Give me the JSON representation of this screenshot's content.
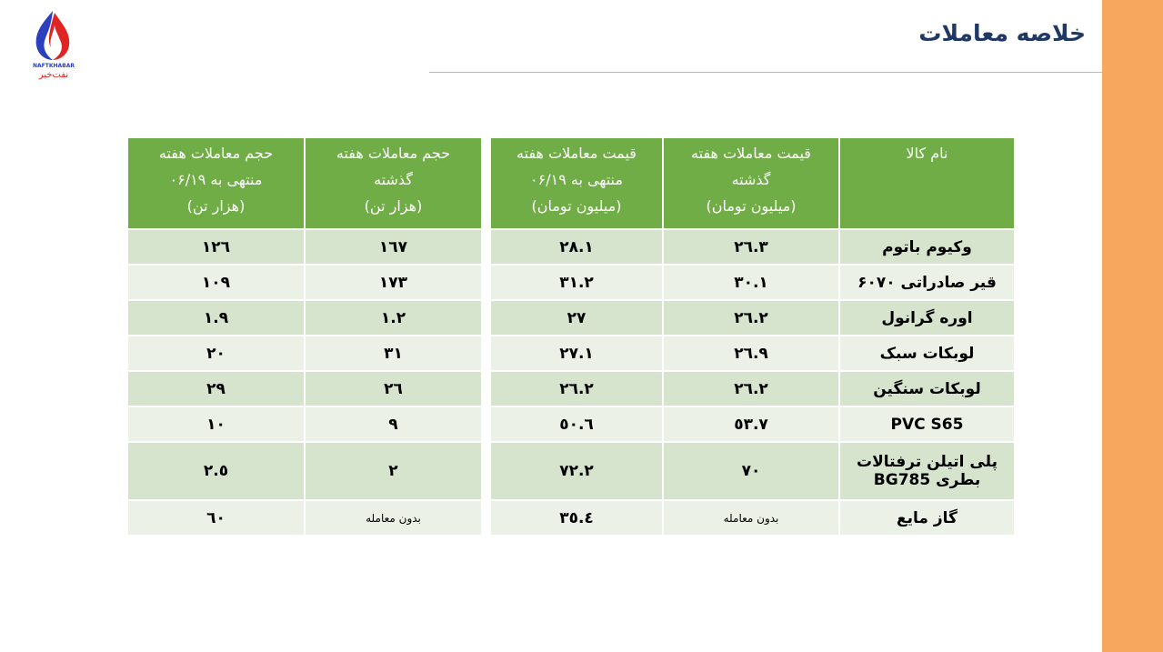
{
  "header": {
    "title": "خلاصه معاملات"
  },
  "logo": {
    "text_latin": "NAFTKHABAR",
    "text_fa": "نفت خبر"
  },
  "colors": {
    "header_green": "#70AD47",
    "row_odd": "#D6E3CD",
    "row_even": "#EBF1E7",
    "side_orange": "#F8A85E",
    "title_blue": "#1F3864"
  },
  "table": {
    "columns": [
      [
        "نام کالا"
      ],
      [
        "قیمت معاملات هفته",
        "گذشته",
        "(میلیون تومان)"
      ],
      [
        "قیمت معاملات هفته",
        "منتهی به ۰۶/۱۹",
        "(میلیون تومان)"
      ],
      [
        "حجم معاملات هفته",
        "گذشته",
        "(هزار تن)"
      ],
      [
        "حجم معاملات هفته",
        "منتهی به ۰۶/۱۹",
        "(هزار تن)"
      ]
    ],
    "rows": [
      {
        "name": "وکیوم باتوم",
        "price_prev": "٢٦.٣",
        "price_curr": "٢٨.١",
        "vol_prev": "١٦٧",
        "vol_curr": "١٢٦"
      },
      {
        "name": "قیر صادراتی ۶۰۷۰",
        "price_prev": "٣٠.١",
        "price_curr": "٣١.٢",
        "vol_prev": "١٧٣",
        "vol_curr": "١٠٩"
      },
      {
        "name": "اوره گرانول",
        "price_prev": "٢٦.٢",
        "price_curr": "٢٧",
        "vol_prev": "١.٢",
        "vol_curr": "١.٩"
      },
      {
        "name": "لوبکات سبک",
        "price_prev": "٢٦.٩",
        "price_curr": "٢٧.١",
        "vol_prev": "٣١",
        "vol_curr": "٢٠"
      },
      {
        "name": "لوبکات سنگین",
        "price_prev": "٢٦.٢",
        "price_curr": "٢٦.٢",
        "vol_prev": "٢٦",
        "vol_curr": "٢٩"
      },
      {
        "name": "PVC S65",
        "price_prev": "٥٣.٧",
        "price_curr": "٥٠.٦",
        "vol_prev": "٩",
        "vol_curr": "١٠"
      },
      {
        "name": "پلی اتیلن ترفتالات بطری  BG785",
        "price_prev": "٧٠",
        "price_curr": "٧٢.٢",
        "vol_prev": "٢",
        "vol_curr": "٢.٥"
      },
      {
        "name": "گاز مایع",
        "price_prev": "بدون معامله",
        "price_curr": "٣٥.٤",
        "vol_prev": "بدون معامله",
        "vol_curr": "٦٠"
      }
    ]
  }
}
